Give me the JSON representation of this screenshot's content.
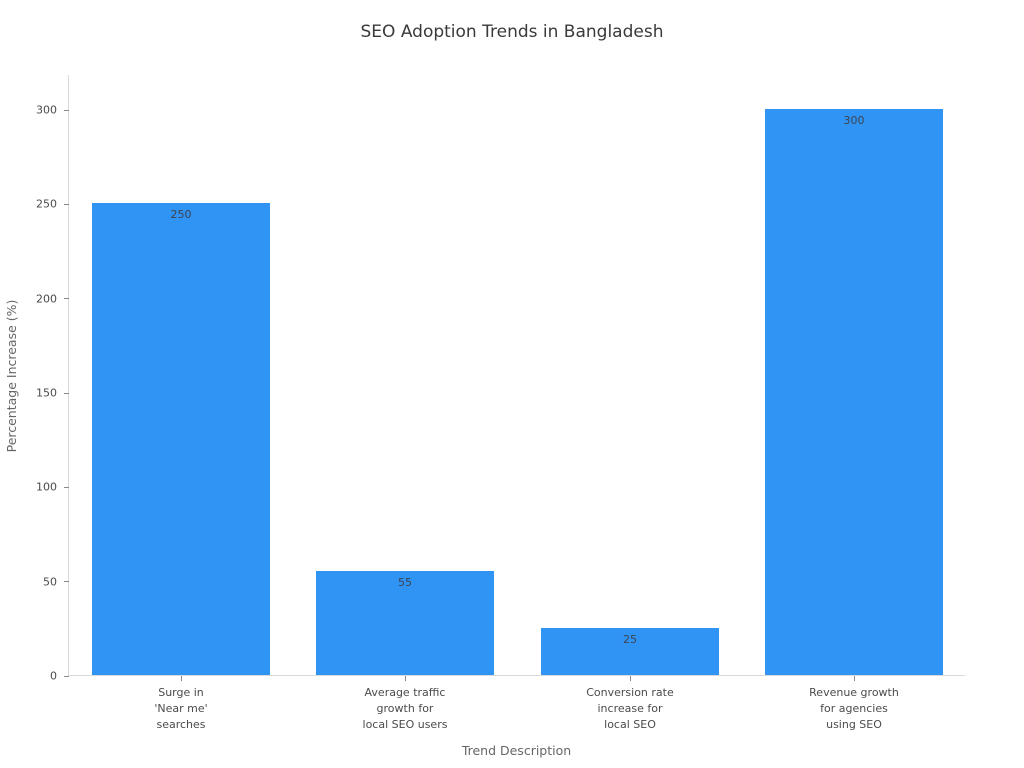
{
  "title": "SEO Adoption Trends in Bangladesh",
  "chart_data": {
    "type": "bar",
    "title": "SEO Adoption Trends in Bangladesh",
    "xlabel": "Trend Description",
    "ylabel": "Percentage Increase (%)",
    "categories": [
      "Surge in 'Near me' searches",
      "Average traffic growth for local SEO users",
      "Conversion rate increase for local SEO",
      "Revenue growth for agencies using SEO"
    ],
    "tick_label_lines": [
      [
        "Surge in",
        "'Near me'",
        "searches"
      ],
      [
        "Average traffic",
        "growth for",
        "local SEO users"
      ],
      [
        "Conversion rate",
        "increase for",
        "local SEO"
      ],
      [
        "Revenue growth",
        "for agencies",
        "using SEO"
      ]
    ],
    "values": [
      250,
      55,
      25,
      300
    ],
    "bar_labels": [
      "250",
      "55",
      "25",
      "300"
    ],
    "ylim": [
      0,
      300
    ],
    "yticks": [
      0,
      50,
      100,
      150,
      200,
      250,
      300
    ],
    "grid": false,
    "legend": "none",
    "colors": {
      "bar": "#3094f5",
      "title_text": "#3a3a3a",
      "tick_text": "#4b4b4b",
      "axis_label_text": "#666666",
      "spine": "#d9d9d9",
      "background": "#ffffff"
    }
  }
}
